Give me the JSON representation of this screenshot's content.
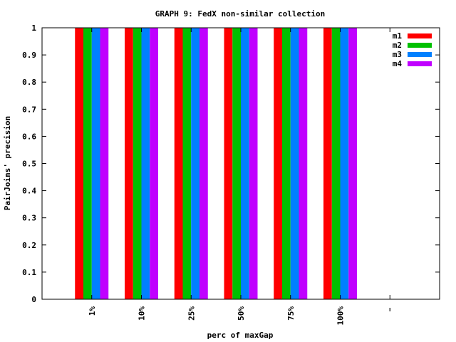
{
  "chart_data": {
    "type": "bar",
    "title": "GRAPH 9: FedX non-similar collection",
    "xlabel": "perc of maxGap",
    "ylabel": "PairJoins' precision",
    "categories": [
      "1%",
      "10%",
      "25%",
      "50%",
      "75%",
      "100%",
      ""
    ],
    "series": [
      {
        "name": "m1",
        "color": "#ff0000",
        "values": [
          1,
          1,
          1,
          1,
          1,
          1,
          null
        ]
      },
      {
        "name": "m2",
        "color": "#00c000",
        "values": [
          1,
          1,
          1,
          1,
          1,
          1,
          null
        ]
      },
      {
        "name": "m3",
        "color": "#0080ff",
        "values": [
          1,
          1,
          1,
          1,
          1,
          1,
          null
        ]
      },
      {
        "name": "m4",
        "color": "#c000ff",
        "values": [
          1,
          1,
          1,
          1,
          1,
          1,
          null
        ]
      }
    ],
    "ylim": [
      0,
      1
    ],
    "yticks": [
      "0",
      "0.1",
      "0.2",
      "0.3",
      "0.4",
      "0.5",
      "0.6",
      "0.7",
      "0.8",
      "0.9",
      "1"
    ],
    "legend_position": "top-right",
    "grid": false
  }
}
